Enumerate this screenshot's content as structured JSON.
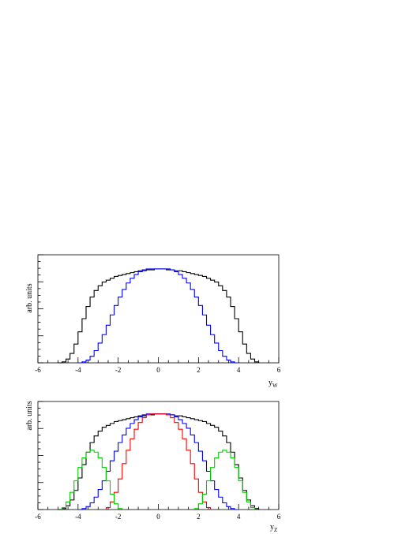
{
  "chart_data": [
    {
      "type": "line",
      "title": "",
      "xlabel": "y",
      "xlabel_sub": "W",
      "ylabel": "arb. units",
      "xlim": [
        -6,
        6
      ],
      "xticks": [
        "-6",
        "-4",
        "-2",
        "0",
        "2",
        "4",
        "6"
      ],
      "grid": false,
      "series": [
        {
          "color": "#000000",
          "edges": [
            -5.0,
            -4.8,
            -4.6,
            -4.4,
            -4.2,
            -4.0,
            -3.8,
            -3.6,
            -3.4,
            -3.2,
            -3.0,
            -2.8,
            -2.6,
            -2.4,
            -2.2,
            -2.0,
            -1.8,
            -1.6,
            -1.4,
            -1.2,
            -1.0,
            -0.8,
            -0.6,
            -0.4,
            -0.2,
            0.0,
            0.2,
            0.4,
            0.6,
            0.8,
            1.0,
            1.2,
            1.4,
            1.6,
            1.8,
            2.0,
            2.2,
            2.4,
            2.6,
            2.8,
            3.0,
            3.2,
            3.4,
            3.6,
            3.8,
            4.0,
            4.2,
            4.4,
            4.6,
            4.8,
            5.0
          ],
          "values": [
            0.0,
            0.01,
            0.04,
            0.1,
            0.2,
            0.33,
            0.47,
            0.6,
            0.7,
            0.77,
            0.82,
            0.86,
            0.88,
            0.9,
            0.92,
            0.93,
            0.94,
            0.95,
            0.96,
            0.97,
            0.98,
            0.98,
            0.99,
            0.99,
            1.0,
            1.0,
            1.0,
            0.99,
            0.99,
            0.98,
            0.98,
            0.97,
            0.96,
            0.95,
            0.94,
            0.93,
            0.92,
            0.9,
            0.88,
            0.86,
            0.82,
            0.77,
            0.7,
            0.6,
            0.47,
            0.33,
            0.2,
            0.1,
            0.04,
            0.01
          ]
        },
        {
          "color": "#0000ff",
          "edges": [
            -4.0,
            -3.8,
            -3.6,
            -3.4,
            -3.2,
            -3.0,
            -2.8,
            -2.6,
            -2.4,
            -2.2,
            -2.0,
            -1.8,
            -1.6,
            -1.4,
            -1.2,
            -1.0,
            -0.8,
            -0.6,
            -0.4,
            -0.2,
            0.0,
            0.2,
            0.4,
            0.6,
            0.8,
            1.0,
            1.2,
            1.4,
            1.6,
            1.8,
            2.0,
            2.2,
            2.4,
            2.6,
            2.8,
            3.0,
            3.2,
            3.4,
            3.6,
            3.8,
            4.0
          ],
          "values": [
            0.0,
            0.01,
            0.03,
            0.07,
            0.13,
            0.21,
            0.3,
            0.4,
            0.51,
            0.61,
            0.7,
            0.78,
            0.85,
            0.9,
            0.94,
            0.97,
            0.99,
            1.0,
            1.0,
            1.0,
            1.0,
            1.0,
            1.0,
            0.99,
            0.97,
            0.94,
            0.9,
            0.85,
            0.78,
            0.7,
            0.61,
            0.51,
            0.4,
            0.3,
            0.21,
            0.13,
            0.07,
            0.03,
            0.01,
            0.0
          ]
        }
      ]
    },
    {
      "type": "line",
      "title": "",
      "xlabel": "y",
      "xlabel_sub": "Z",
      "ylabel": "arb. units",
      "xlim": [
        -6,
        6
      ],
      "xticks": [
        "-6",
        "-4",
        "-2",
        "0",
        "2",
        "4",
        "6"
      ],
      "grid": false,
      "series": [
        {
          "color": "#000000",
          "edges": [
            -5.0,
            -4.8,
            -4.6,
            -4.4,
            -4.2,
            -4.0,
            -3.8,
            -3.6,
            -3.4,
            -3.2,
            -3.0,
            -2.8,
            -2.6,
            -2.4,
            -2.2,
            -2.0,
            -1.8,
            -1.6,
            -1.4,
            -1.2,
            -1.0,
            -0.8,
            -0.6,
            -0.4,
            -0.2,
            0.0,
            0.2,
            0.4,
            0.6,
            0.8,
            1.0,
            1.2,
            1.4,
            1.6,
            1.8,
            2.0,
            2.2,
            2.4,
            2.6,
            2.8,
            3.0,
            3.2,
            3.4,
            3.6,
            3.8,
            4.0,
            4.2,
            4.4,
            4.6,
            4.8,
            5.0
          ],
          "values": [
            0.0,
            0.01,
            0.04,
            0.1,
            0.2,
            0.33,
            0.47,
            0.6,
            0.7,
            0.77,
            0.82,
            0.86,
            0.88,
            0.9,
            0.92,
            0.93,
            0.94,
            0.95,
            0.96,
            0.97,
            0.98,
            0.98,
            0.99,
            0.99,
            1.0,
            1.0,
            1.0,
            0.99,
            0.99,
            0.98,
            0.98,
            0.97,
            0.96,
            0.95,
            0.94,
            0.93,
            0.92,
            0.9,
            0.88,
            0.86,
            0.82,
            0.77,
            0.7,
            0.6,
            0.47,
            0.33,
            0.2,
            0.1,
            0.04,
            0.01
          ]
        },
        {
          "color": "#0000ff",
          "edges": [
            -4.0,
            -3.8,
            -3.6,
            -3.4,
            -3.2,
            -3.0,
            -2.8,
            -2.6,
            -2.4,
            -2.2,
            -2.0,
            -1.8,
            -1.6,
            -1.4,
            -1.2,
            -1.0,
            -0.8,
            -0.6,
            -0.4,
            -0.2,
            0.0,
            0.2,
            0.4,
            0.6,
            0.8,
            1.0,
            1.2,
            1.4,
            1.6,
            1.8,
            2.0,
            2.2,
            2.4,
            2.6,
            2.8,
            3.0,
            3.2,
            3.4,
            3.6,
            3.8,
            4.0
          ],
          "values": [
            0.0,
            0.01,
            0.03,
            0.07,
            0.13,
            0.21,
            0.3,
            0.4,
            0.51,
            0.61,
            0.7,
            0.78,
            0.85,
            0.9,
            0.94,
            0.97,
            0.99,
            1.0,
            1.0,
            1.0,
            1.0,
            1.0,
            1.0,
            0.99,
            0.97,
            0.94,
            0.9,
            0.85,
            0.78,
            0.7,
            0.61,
            0.51,
            0.4,
            0.3,
            0.21,
            0.13,
            0.07,
            0.03,
            0.01,
            0.0
          ]
        },
        {
          "color": "#ff0000",
          "edges": [
            -2.6,
            -2.4,
            -2.2,
            -2.0,
            -1.8,
            -1.6,
            -1.4,
            -1.2,
            -1.0,
            -0.8,
            -0.6,
            -0.4,
            -0.2,
            0.0,
            0.2,
            0.4,
            0.6,
            0.8,
            1.0,
            1.2,
            1.4,
            1.6,
            1.8,
            2.0,
            2.2,
            2.4,
            2.6
          ],
          "values": [
            0.02,
            0.08,
            0.18,
            0.32,
            0.48,
            0.62,
            0.74,
            0.84,
            0.91,
            0.96,
            0.99,
            1.0,
            1.0,
            1.0,
            1.0,
            0.99,
            0.96,
            0.91,
            0.84,
            0.74,
            0.62,
            0.48,
            0.32,
            0.18,
            0.08,
            0.02
          ]
        },
        {
          "color": "#00cc00",
          "edges": [
            -4.8,
            -4.6,
            -4.4,
            -4.2,
            -4.0,
            -3.8,
            -3.6,
            -3.4,
            -3.2,
            -3.0,
            -2.8,
            -2.6,
            -2.4,
            -2.2,
            -2.0,
            -1.8
          ],
          "values": [
            0.02,
            0.08,
            0.18,
            0.3,
            0.44,
            0.54,
            0.6,
            0.62,
            0.6,
            0.54,
            0.44,
            0.3,
            0.16,
            0.06,
            0.01
          ]
        },
        {
          "color": "#00cc00",
          "edges": [
            1.8,
            2.0,
            2.2,
            2.4,
            2.6,
            2.8,
            3.0,
            3.2,
            3.4,
            3.6,
            3.8,
            4.0,
            4.2,
            4.4,
            4.6,
            4.8
          ],
          "values": [
            0.01,
            0.06,
            0.16,
            0.3,
            0.44,
            0.54,
            0.6,
            0.62,
            0.6,
            0.54,
            0.44,
            0.3,
            0.18,
            0.08,
            0.02
          ]
        }
      ]
    }
  ]
}
